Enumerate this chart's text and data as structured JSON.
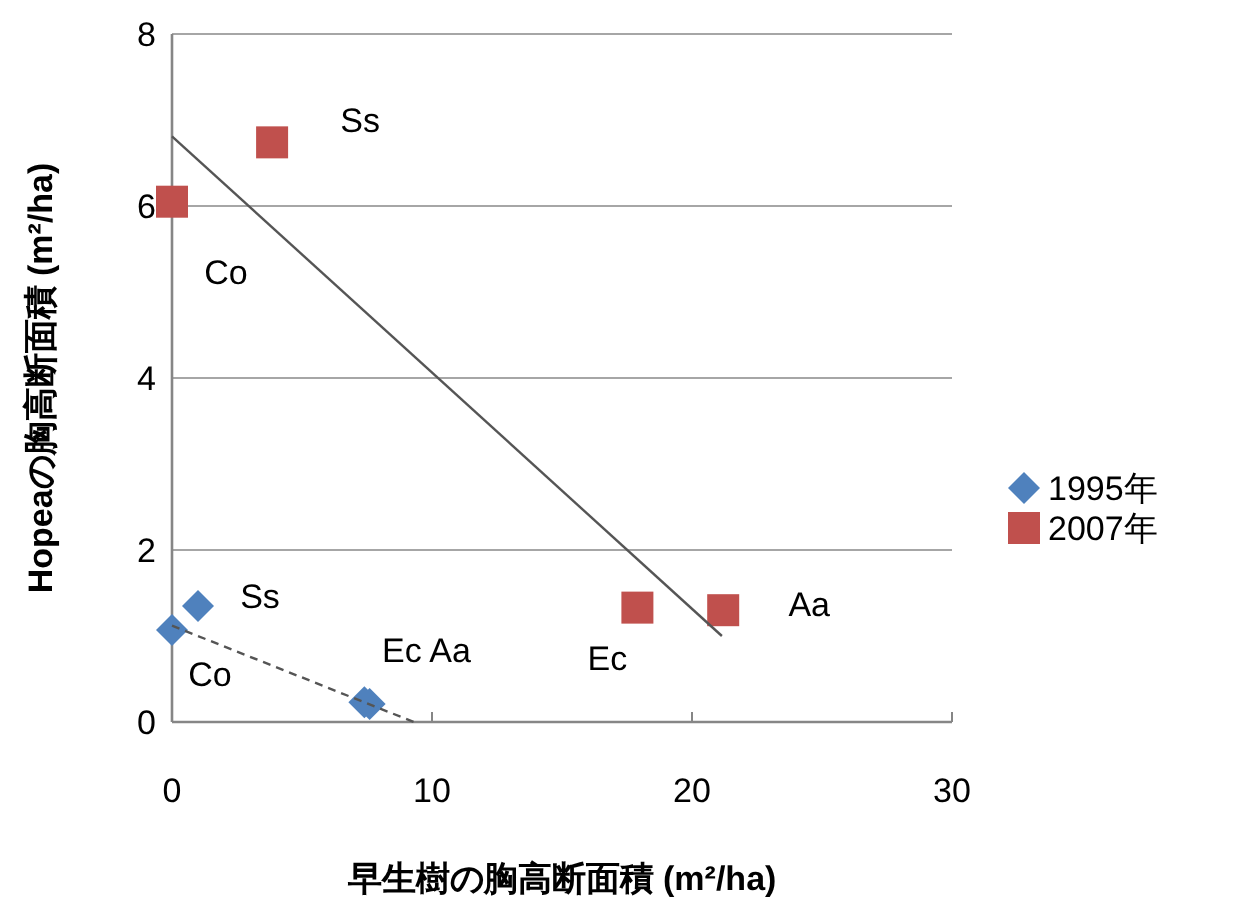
{
  "chart_data": {
    "type": "scatter",
    "xlabel": "早生樹の胸高断面積 (m²/ha)",
    "ylabel": "Hopeaの胸高断面積 (m²/ha)",
    "xlim": [
      0,
      30
    ],
    "ylim": [
      0,
      8
    ],
    "xticks": [
      0,
      10,
      20,
      30
    ],
    "yticks": [
      0,
      2,
      4,
      6,
      8
    ],
    "grid": "y",
    "legend": "right",
    "series": [
      {
        "name": "1995年",
        "color": "#4f81bd",
        "marker": "diamond",
        "x": [
          0,
          1.0,
          7.4,
          7.6
        ],
        "values": [
          1.07,
          1.35,
          0.23,
          0.21
        ],
        "value_labels": [
          "Co",
          "Ss",
          "Ec Aa",
          null
        ]
      },
      {
        "name": "2007年",
        "color": "#c0504d",
        "marker": "square",
        "x": [
          0,
          3.85,
          17.9,
          21.2
        ],
        "values": [
          6.05,
          6.74,
          1.33,
          1.3
        ],
        "value_labels": [
          "Co",
          "Ss",
          "Ec",
          "Aa"
        ]
      },
      {
        "type": "line",
        "color": "#555555",
        "line_style": "dashed",
        "x": [
          0,
          9.3
        ],
        "values": [
          1.12,
          0
        ]
      },
      {
        "type": "line",
        "color": "#555555",
        "line_style": "solid",
        "x": [
          0,
          21.15
        ],
        "values": [
          6.81,
          1.0
        ]
      }
    ]
  }
}
